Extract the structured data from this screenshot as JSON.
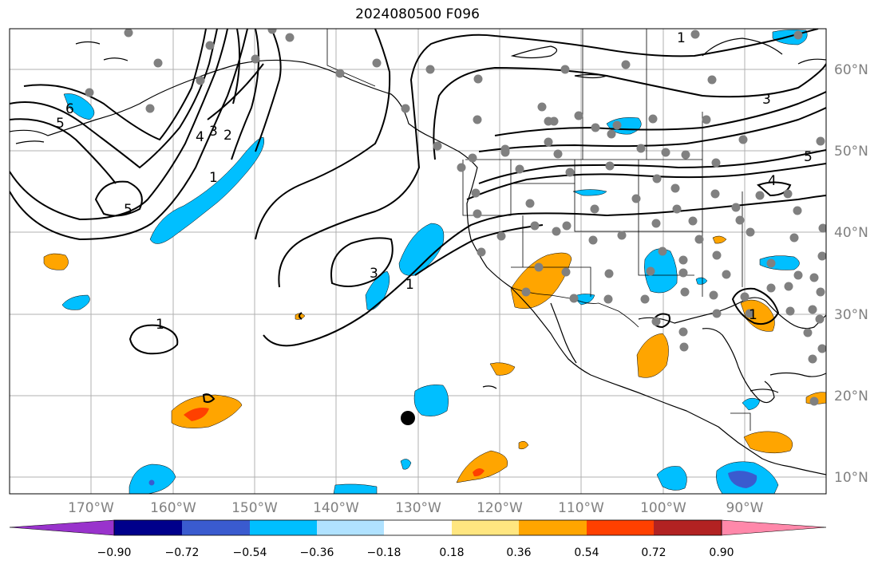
{
  "title": "2024080500 F096",
  "map": {
    "lat_labels": [
      "60°N",
      "50°N",
      "40°N",
      "30°N",
      "20°N",
      "10°N"
    ],
    "lon_labels": [
      "170°W",
      "160°W",
      "150°W",
      "140°W",
      "130°W",
      "120°W",
      "110°W",
      "100°W",
      "90°W"
    ],
    "contour_labels": [
      "1",
      "3",
      "5",
      "6",
      "5",
      "4",
      "3",
      "2",
      "1",
      "5",
      "3",
      "1",
      "1",
      "4",
      "1"
    ],
    "colorbar": {
      "ticks": [
        "−0.90",
        "−0.72",
        "−0.54",
        "−0.36",
        "−0.18",
        "0.18",
        "0.36",
        "0.54",
        "0.72",
        "0.90"
      ],
      "colors": [
        "#9933cc",
        "#00008b",
        "#3a5bcf",
        "#00bfff",
        "#b0e2ff",
        "#ffffff",
        "#ffe680",
        "#ffa500",
        "#ff4000",
        "#b22222",
        "#ff88aa"
      ]
    },
    "colors": {
      "grid": "#b0b0b0",
      "coast": "#000000",
      "contour": "#000000",
      "station": "#808080",
      "neg_light": "#00bfff",
      "neg_mid": "#3a5bcf",
      "pos_light": "#ffa500",
      "pos_mid": "#ff4000"
    }
  }
}
